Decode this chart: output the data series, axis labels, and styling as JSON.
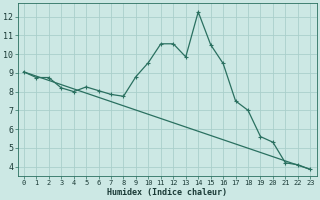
{
  "xlabel": "Humidex (Indice chaleur)",
  "background_color": "#cce8e4",
  "grid_color": "#aacfcb",
  "line_color": "#2a7060",
  "xlim": [
    -0.5,
    23.5
  ],
  "ylim": [
    3.5,
    12.7
  ],
  "xticks": [
    0,
    1,
    2,
    3,
    4,
    5,
    6,
    7,
    8,
    9,
    10,
    11,
    12,
    13,
    14,
    15,
    16,
    17,
    18,
    19,
    20,
    21,
    22,
    23
  ],
  "yticks": [
    4,
    5,
    6,
    7,
    8,
    9,
    10,
    11,
    12
  ],
  "curve1_x": [
    0,
    1,
    2,
    3,
    4,
    5,
    6,
    7,
    8,
    9,
    10,
    11,
    12,
    13,
    14,
    15,
    16,
    17,
    18,
    19,
    20,
    21,
    22,
    23
  ],
  "curve1_y": [
    9.05,
    8.75,
    8.75,
    8.2,
    8.0,
    8.25,
    8.05,
    7.85,
    7.75,
    8.8,
    9.55,
    10.55,
    10.55,
    9.85,
    12.25,
    10.5,
    9.5,
    7.5,
    7.0,
    5.6,
    5.3,
    4.2,
    4.1,
    3.85
  ],
  "curve2_x": [
    0,
    23
  ],
  "curve2_y": [
    9.05,
    3.85
  ],
  "linewidth": 0.9,
  "markersize": 3.0
}
